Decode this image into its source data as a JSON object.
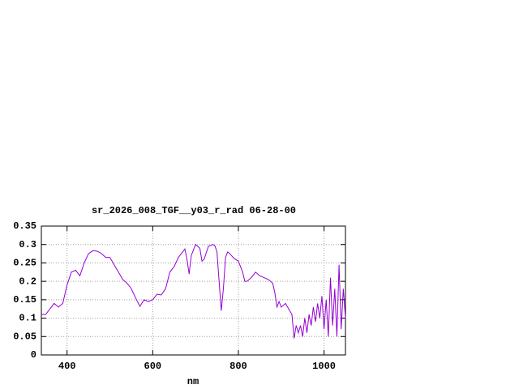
{
  "chart_data": {
    "type": "line",
    "title": "sr_2026_008_TGF__y03_r_rad 06-28-00",
    "x_label": "nm",
    "xlim": [
      340,
      1050
    ],
    "ylim": [
      0,
      0.35
    ],
    "xticks": [
      400,
      600,
      800,
      1000
    ],
    "yticks": [
      0,
      0.05,
      0.1,
      0.15,
      0.2,
      0.25,
      0.3,
      0.35
    ],
    "grid": true,
    "x": [
      340,
      350,
      360,
      370,
      380,
      390,
      400,
      410,
      420,
      430,
      440,
      450,
      460,
      470,
      480,
      490,
      500,
      510,
      520,
      530,
      540,
      550,
      560,
      570,
      580,
      590,
      600,
      610,
      620,
      630,
      640,
      650,
      660,
      670,
      675,
      680,
      685,
      690,
      700,
      710,
      715,
      720,
      730,
      740,
      745,
      750,
      755,
      760,
      765,
      770,
      775,
      780,
      790,
      800,
      810,
      815,
      820,
      830,
      840,
      850,
      860,
      870,
      880,
      885,
      890,
      895,
      900,
      910,
      915,
      920,
      925,
      930,
      935,
      940,
      945,
      950,
      955,
      960,
      965,
      970,
      975,
      980,
      985,
      990,
      995,
      1000,
      1005,
      1010,
      1015,
      1020,
      1025,
      1030,
      1035,
      1040,
      1045,
      1050
    ],
    "series": [
      {
        "color": "#9400d3",
        "values": [
          0.11,
          0.11,
          0.125,
          0.14,
          0.13,
          0.14,
          0.19,
          0.225,
          0.23,
          0.215,
          0.25,
          0.275,
          0.283,
          0.282,
          0.276,
          0.265,
          0.265,
          0.245,
          0.225,
          0.205,
          0.195,
          0.18,
          0.155,
          0.132,
          0.15,
          0.145,
          0.15,
          0.165,
          0.163,
          0.18,
          0.225,
          0.24,
          0.265,
          0.28,
          0.288,
          0.26,
          0.22,
          0.27,
          0.3,
          0.29,
          0.255,
          0.26,
          0.295,
          0.3,
          0.297,
          0.28,
          0.2,
          0.12,
          0.18,
          0.265,
          0.28,
          0.275,
          0.262,
          0.255,
          0.225,
          0.2,
          0.2,
          0.21,
          0.225,
          0.215,
          0.21,
          0.205,
          0.195,
          0.17,
          0.13,
          0.145,
          0.13,
          0.14,
          0.13,
          0.12,
          0.11,
          0.045,
          0.08,
          0.06,
          0.08,
          0.05,
          0.1,
          0.06,
          0.11,
          0.08,
          0.13,
          0.09,
          0.14,
          0.1,
          0.16,
          0.07,
          0.15,
          0.05,
          0.21,
          0.08,
          0.18,
          0.05,
          0.245,
          0.07,
          0.18,
          0.1
        ]
      }
    ]
  }
}
